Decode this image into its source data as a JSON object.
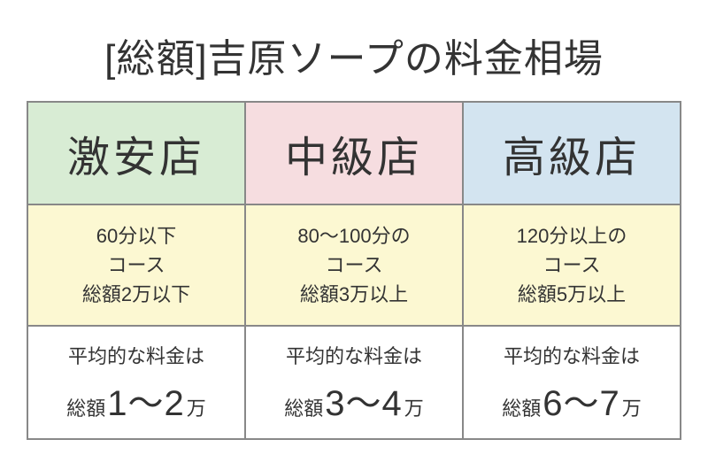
{
  "title": "[総額]吉原ソープの料金相場",
  "colors": {
    "border": "#888888",
    "text": "#333333",
    "tier_headers": {
      "budget": "#d8ecd4",
      "mid": "#f6dde0",
      "premium": "#d3e4f0"
    },
    "course_bg": "#fcf8d2",
    "avg_bg": "#ffffff"
  },
  "typography": {
    "title_fontsize": 44,
    "tier_fontsize": 48,
    "course_fontsize": 22,
    "avg_label_fontsize": 22,
    "avg_range_fontsize": 40
  },
  "tiers": [
    {
      "name": "激安店",
      "header_bg": "#d8ecd4",
      "course_line1": "60分以下",
      "course_line2": "コース",
      "course_line3": "総額2万以下",
      "avg_label": "平均的な料金は",
      "avg_prefix": "総額",
      "avg_range": "1〜2",
      "avg_suffix": "万"
    },
    {
      "name": "中級店",
      "header_bg": "#f6dde0",
      "course_line1": "80〜100分の",
      "course_line2": "コース",
      "course_line3": "総額3万以上",
      "avg_label": "平均的な料金は",
      "avg_prefix": "総額",
      "avg_range": "3〜4",
      "avg_suffix": "万"
    },
    {
      "name": "高級店",
      "header_bg": "#d3e4f0",
      "course_line1": "120分以上の",
      "course_line2": "コース",
      "course_line3": "総額5万以上",
      "avg_label": "平均的な料金は",
      "avg_prefix": "総額",
      "avg_range": "6〜7",
      "avg_suffix": "万"
    }
  ]
}
